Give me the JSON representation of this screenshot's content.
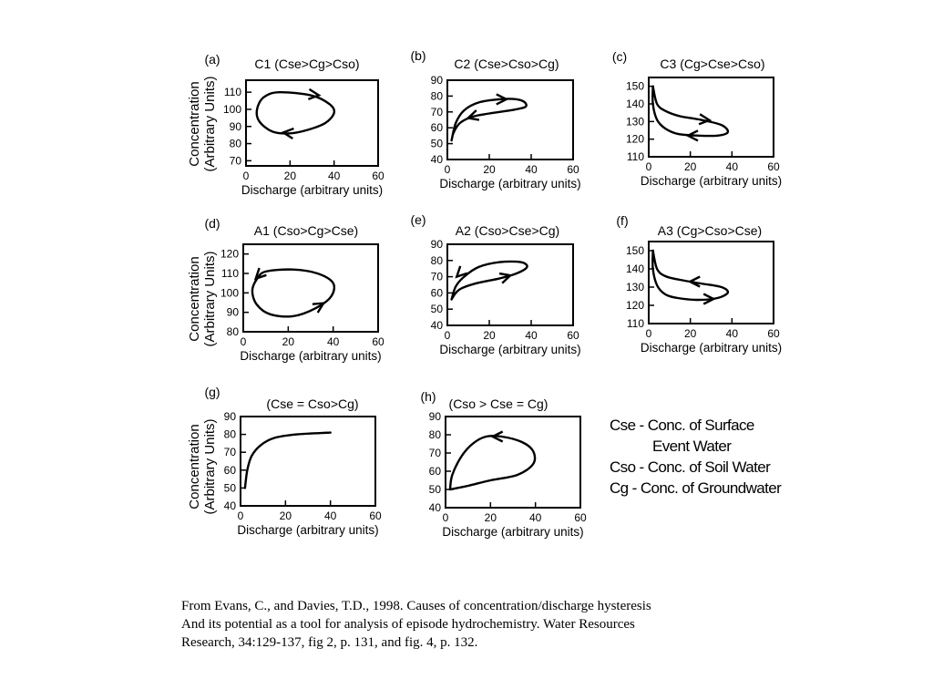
{
  "chart_data": [
    {
      "id": "a",
      "type": "line",
      "panel_label": "(a)",
      "title": "C1 (Cse>Cg>Cso)",
      "xlabel": "Discharge (arbitrary units)",
      "ylabel": [
        "Concentration",
        "(Arbitrary Units)"
      ],
      "xlim": [
        0,
        60
      ],
      "ylim": [
        67,
        117
      ],
      "xticks": [
        0,
        20,
        40,
        60
      ],
      "yticks": [
        70,
        80,
        90,
        100,
        110
      ],
      "closed": true,
      "points": [
        [
          15,
          110
        ],
        [
          30,
          108
        ],
        [
          38,
          103
        ],
        [
          40,
          98
        ],
        [
          36,
          92
        ],
        [
          28,
          88
        ],
        [
          20,
          86
        ],
        [
          12,
          87
        ],
        [
          6,
          93
        ],
        [
          5,
          100
        ],
        [
          8,
          107
        ]
      ],
      "arrows": [
        {
          "at": [
            31,
            108.5
          ],
          "dir": [
            1,
            -0.1
          ]
        },
        {
          "at": [
            19,
            86.2
          ],
          "dir": [
            -1,
            0.1
          ]
        }
      ]
    },
    {
      "id": "b",
      "type": "line",
      "panel_label": "(b)",
      "title": "C2 (Cse>Cso>Cg)",
      "xlabel": "Discharge (arbitrary units)",
      "ylabel": [],
      "xlim": [
        0,
        60
      ],
      "ylim": [
        40,
        90
      ],
      "xticks": [
        0,
        20,
        40,
        60
      ],
      "yticks": [
        40,
        50,
        60,
        70,
        80,
        90
      ],
      "closed": false,
      "points": [
        [
          2,
          52
        ],
        [
          4,
          63
        ],
        [
          8,
          71
        ],
        [
          15,
          76
        ],
        [
          25,
          78
        ],
        [
          33,
          78
        ],
        [
          37,
          76
        ],
        [
          37,
          73
        ],
        [
          30,
          71
        ],
        [
          20,
          69
        ],
        [
          12,
          67
        ],
        [
          6,
          63
        ],
        [
          3,
          57
        ],
        [
          2,
          52
        ]
      ],
      "arrows": [
        {
          "at": [
            26,
            78
          ],
          "dir": [
            1,
            0
          ]
        },
        {
          "at": [
            12,
            67
          ],
          "dir": [
            -1,
            -0.3
          ]
        }
      ]
    },
    {
      "id": "c",
      "type": "line",
      "panel_label": "(c)",
      "title": "C3 (Cg>Cse>Cso)",
      "xlabel": "Discharge (arbitrary units)",
      "ylabel": [],
      "xlim": [
        0,
        60
      ],
      "ylim": [
        110,
        155
      ],
      "xticks": [
        0,
        20,
        40,
        60
      ],
      "yticks": [
        110,
        120,
        130,
        140,
        150
      ],
      "closed": false,
      "points": [
        [
          2,
          150
        ],
        [
          4,
          140
        ],
        [
          8,
          136
        ],
        [
          15,
          133
        ],
        [
          25,
          131
        ],
        [
          35,
          128
        ],
        [
          38,
          124
        ],
        [
          33,
          122
        ],
        [
          24,
          122
        ],
        [
          14,
          123
        ],
        [
          8,
          126
        ],
        [
          4,
          131
        ],
        [
          2,
          140
        ],
        [
          2,
          150
        ]
      ],
      "arrows": [
        {
          "at": [
            27,
            131
          ],
          "dir": [
            1,
            -0.1
          ]
        },
        {
          "at": [
            21,
            122
          ],
          "dir": [
            -1,
            0
          ]
        }
      ]
    },
    {
      "id": "d",
      "type": "line",
      "panel_label": "(d)",
      "title": "A1 (Cso>Cg>Cse)",
      "xlabel": "Discharge (arbitrary units)",
      "ylabel": [
        "Concentration",
        "(Arbitrary Units)"
      ],
      "xlim": [
        0,
        60
      ],
      "ylim": [
        80,
        125
      ],
      "xticks": [
        0,
        20,
        40,
        60
      ],
      "yticks": [
        80,
        90,
        100,
        110,
        120
      ],
      "closed": true,
      "points": [
        [
          10,
          111
        ],
        [
          22,
          112
        ],
        [
          33,
          110
        ],
        [
          40,
          105
        ],
        [
          39,
          98
        ],
        [
          32,
          92
        ],
        [
          22,
          88
        ],
        [
          12,
          89
        ],
        [
          6,
          94
        ],
        [
          4,
          101
        ],
        [
          6,
          107
        ]
      ],
      "arrows": [
        {
          "at": [
            7,
            109
          ],
          "dir": [
            -0.6,
            -0.6
          ]
        },
        {
          "at": [
            34,
            93.5
          ],
          "dir": [
            0.8,
            0.5
          ]
        }
      ]
    },
    {
      "id": "e",
      "type": "line",
      "panel_label": "(e)",
      "title": "A2 (Cso>Cse>Cg)",
      "xlabel": "Discharge (arbitrary units)",
      "ylabel": [],
      "xlim": [
        0,
        60
      ],
      "ylim": [
        40,
        90
      ],
      "xticks": [
        0,
        20,
        40,
        60
      ],
      "yticks": [
        40,
        50,
        60,
        70,
        80,
        90
      ],
      "closed": false,
      "points": [
        [
          2,
          56
        ],
        [
          4,
          64
        ],
        [
          8,
          70
        ],
        [
          15,
          76
        ],
        [
          25,
          79
        ],
        [
          35,
          79
        ],
        [
          38,
          76
        ],
        [
          33,
          72
        ],
        [
          25,
          69
        ],
        [
          14,
          66
        ],
        [
          7,
          63
        ],
        [
          4,
          60
        ],
        [
          2,
          56
        ]
      ],
      "arrows": [
        {
          "at": [
            6,
            72
          ],
          "dir": [
            -0.6,
            -0.6
          ]
        },
        {
          "at": [
            28,
            70
          ],
          "dir": [
            1,
            0.3
          ]
        }
      ]
    },
    {
      "id": "f",
      "type": "line",
      "panel_label": "(f)",
      "title": "A3 (Cg>Cso>Cse)",
      "xlabel": "Discharge (arbitrary units)",
      "ylabel": [],
      "xlim": [
        0,
        60
      ],
      "ylim": [
        110,
        155
      ],
      "xticks": [
        0,
        20,
        40,
        60
      ],
      "yticks": [
        110,
        120,
        130,
        140,
        150
      ],
      "closed": false,
      "points": [
        [
          2,
          150
        ],
        [
          4,
          140
        ],
        [
          8,
          136
        ],
        [
          15,
          134
        ],
        [
          25,
          132
        ],
        [
          35,
          130
        ],
        [
          38,
          127
        ],
        [
          33,
          124
        ],
        [
          24,
          123
        ],
        [
          14,
          124
        ],
        [
          8,
          126
        ],
        [
          4,
          131
        ],
        [
          2,
          140
        ],
        [
          2,
          150
        ]
      ],
      "arrows": [
        {
          "at": [
            22,
            133
          ],
          "dir": [
            -1,
            0
          ]
        },
        {
          "at": [
            29,
            123.5
          ],
          "dir": [
            1,
            0
          ]
        }
      ]
    },
    {
      "id": "g",
      "type": "line",
      "panel_label": "(g)",
      "title": "(Cse = Cso>Cg)",
      "xlabel": "Discharge (arbitrary units)",
      "ylabel": [
        "Concentration",
        "(Arbitrary Units)"
      ],
      "xlim": [
        0,
        60
      ],
      "ylim": [
        40,
        90
      ],
      "xticks": [
        0,
        20,
        40,
        60
      ],
      "yticks": [
        40,
        50,
        60,
        70,
        80,
        90
      ],
      "closed": false,
      "points": [
        [
          2,
          50
        ],
        [
          3,
          60
        ],
        [
          5,
          68
        ],
        [
          9,
          74
        ],
        [
          15,
          78
        ],
        [
          25,
          80
        ],
        [
          40,
          81
        ]
      ],
      "arrows": []
    },
    {
      "id": "h",
      "type": "line",
      "panel_label": "(h)",
      "title": "(Cso > Cse = Cg)",
      "xlabel": "Discharge (arbitrary units)",
      "ylabel": [],
      "xlim": [
        0,
        60
      ],
      "ylim": [
        40,
        90
      ],
      "xticks": [
        0,
        20,
        40,
        60
      ],
      "yticks": [
        40,
        50,
        60,
        70,
        80,
        90
      ],
      "closed": false,
      "points": [
        [
          2,
          50
        ],
        [
          3,
          58
        ],
        [
          7,
          68
        ],
        [
          12,
          75
        ],
        [
          18,
          79
        ],
        [
          25,
          79
        ],
        [
          34,
          76
        ],
        [
          39,
          71
        ],
        [
          39,
          64
        ],
        [
          32,
          58
        ],
        [
          20,
          55
        ],
        [
          10,
          52
        ],
        [
          2,
          50
        ]
      ],
      "arrows": [
        {
          "at": [
            23,
            79
          ],
          "dir": [
            -1,
            0
          ]
        }
      ]
    }
  ],
  "legend": {
    "lines": [
      "Cse - Conc. of Surface",
      "Event Water",
      "Cso - Conc. of Soil Water",
      "Cg - Conc. of Groundwater"
    ]
  },
  "citation": {
    "lines": [
      "From Evans, C., and Davies, T.D., 1998. Causes of concentration/discharge hysteresis",
      "And its potential as a tool for analysis of episode hydrochemistry. Water Resources",
      "Research, 34:129-137, fig 2, p. 131, and fig. 4, p. 132."
    ]
  }
}
